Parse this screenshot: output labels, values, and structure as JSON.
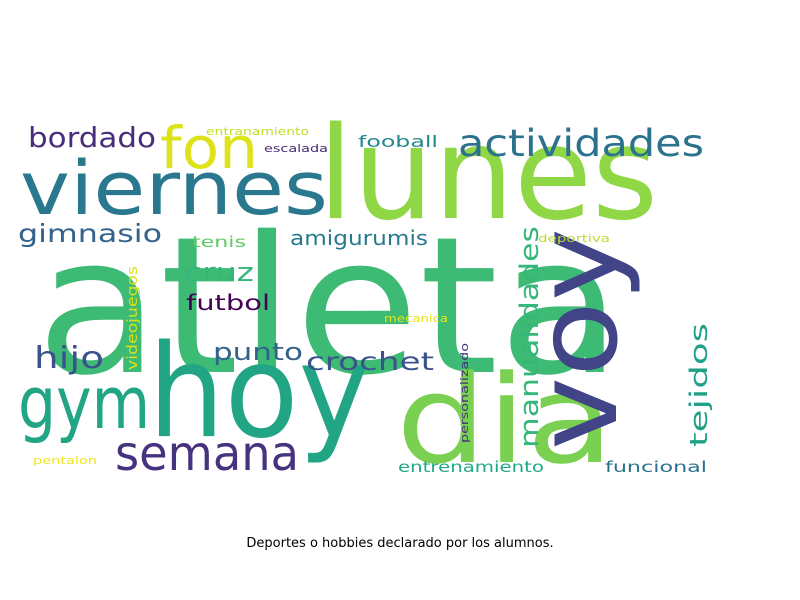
{
  "wordcloud": {
    "caption": "Deportes o hobbies declarado por los alumnos.",
    "words": [
      {
        "key": "atleta",
        "text": "atleta",
        "color": "#3dbb74"
      },
      {
        "key": "lunes",
        "text": "lunes",
        "color": "#8fd744"
      },
      {
        "key": "hoy",
        "text": "hoy",
        "color": "#21a585"
      },
      {
        "key": "dia",
        "text": "dia",
        "color": "#7ad151"
      },
      {
        "key": "voy",
        "text": "voy",
        "color": "#414487"
      },
      {
        "key": "viernes",
        "text": "viernes",
        "color": "#2a788e"
      },
      {
        "key": "gym",
        "text": "gym",
        "color": "#21a585"
      },
      {
        "key": "semana",
        "text": "semana",
        "color": "#46327e"
      },
      {
        "key": "fon",
        "text": "fon",
        "color": "#dde318"
      },
      {
        "key": "actividades",
        "text": "actividades",
        "color": "#2c728e"
      },
      {
        "key": "bordado",
        "text": "bordado",
        "color": "#472d7b"
      },
      {
        "key": "gimnasio",
        "text": "gimnasio",
        "color": "#33638d"
      },
      {
        "key": "manualidades",
        "text": "manualidades",
        "color": "#35b779"
      },
      {
        "key": "tejidos",
        "text": "tejidos",
        "color": "#1fa187"
      },
      {
        "key": "crochet",
        "text": "crochet",
        "color": "#3b528b"
      },
      {
        "key": "hijo",
        "text": "hijo",
        "color": "#3b528b"
      },
      {
        "key": "punto",
        "text": "punto",
        "color": "#33638d"
      },
      {
        "key": "cruz",
        "text": "cruz",
        "color": "#35b779"
      },
      {
        "key": "amigurumis",
        "text": "amigurumis",
        "color": "#29798e"
      },
      {
        "key": "futbol",
        "text": "futbol",
        "color": "#440154"
      },
      {
        "key": "fooball",
        "text": "fooball",
        "color": "#23898e"
      },
      {
        "key": "entrenamiento",
        "text": "entrenamiento",
        "color": "#22a884"
      },
      {
        "key": "funcional",
        "text": "funcional",
        "color": "#2c728e"
      },
      {
        "key": "tenis",
        "text": "tenis",
        "color": "#5ec962"
      },
      {
        "key": "videojuegos",
        "text": "videojuegos",
        "color": "#d8e219"
      },
      {
        "key": "personalizado",
        "text": "personalizado",
        "color": "#46327e"
      },
      {
        "key": "deportiva",
        "text": "deportiva",
        "color": "#bade28"
      },
      {
        "key": "escalada",
        "text": "escalada",
        "color": "#482878"
      },
      {
        "key": "entranamiento",
        "text": "entranamiento",
        "color": "#c2df23"
      },
      {
        "key": "mecanica",
        "text": "mecanica",
        "color": "#e5e419"
      },
      {
        "key": "pentalon",
        "text": "pentalon",
        "color": "#f1e51d"
      }
    ]
  }
}
